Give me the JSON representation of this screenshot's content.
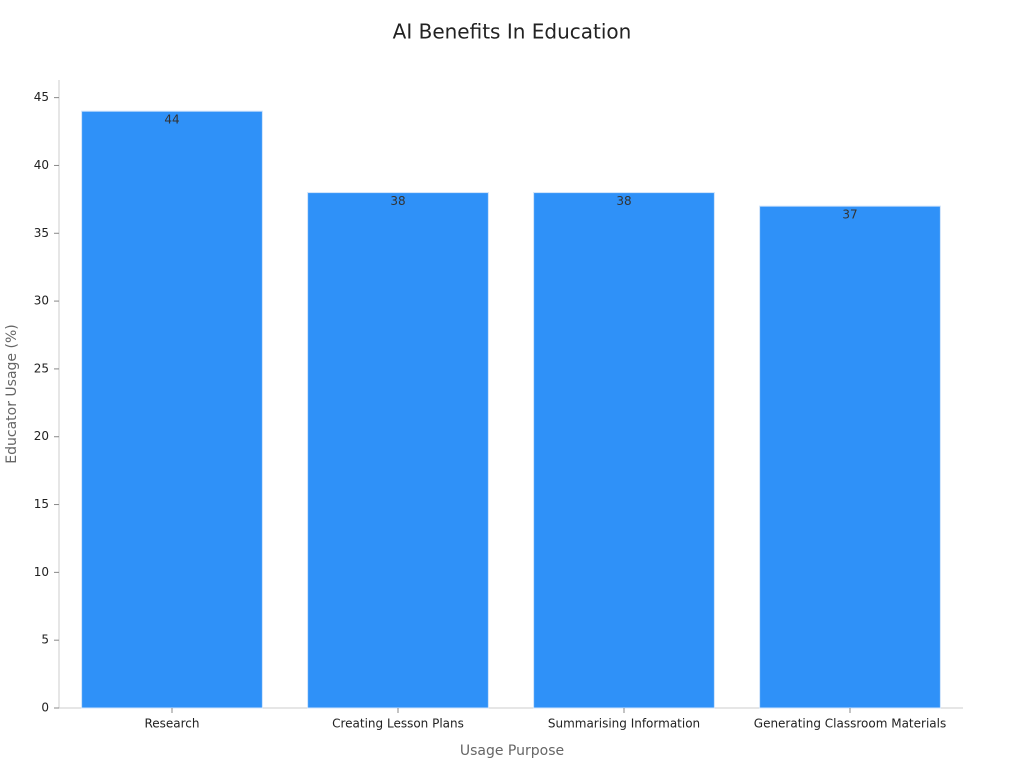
{
  "chart_data": {
    "type": "bar",
    "title": "AI Benefits In Education",
    "x_label": "Usage Purpose",
    "y_label": "Educator Usage (%)",
    "categories": [
      "Research",
      "Creating Lesson Plans",
      "Summarising Information",
      "Generating Classroom Materials"
    ],
    "values": [
      44,
      38,
      38,
      37
    ],
    "color": "#2f91f8",
    "ylim": [
      0,
      46.3
    ],
    "yticks": [
      0,
      5,
      10,
      15,
      20,
      25,
      30,
      35,
      40,
      45
    ],
    "grid": false
  }
}
